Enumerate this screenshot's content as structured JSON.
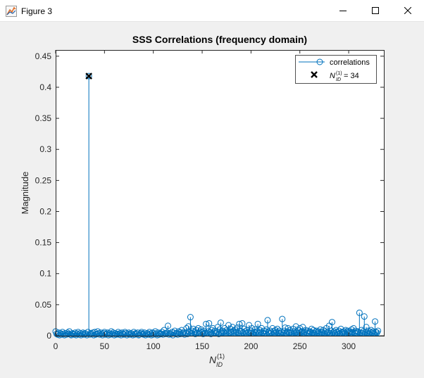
{
  "window": {
    "title": "Figure 3",
    "icon": "matlab-figure-icon",
    "controls": [
      "minimize",
      "maximize",
      "close"
    ]
  },
  "colors": {
    "stem": "#0072bd",
    "marker": "#000000",
    "figure_bg": "#f0f0f0",
    "axes_bg": "#ffffff"
  },
  "chart_data": {
    "type": "scatter",
    "subtype": "stem",
    "title": "SSS Correlations (frequency domain)",
    "xlabel": "N_ID^(1)",
    "ylabel": "Magnitude",
    "xlim": [
      0,
      336
    ],
    "ylim": [
      0,
      0.46
    ],
    "xticks": [
      0,
      50,
      100,
      150,
      200,
      250,
      300
    ],
    "yticks": [
      0,
      0.05,
      0.1,
      0.15,
      0.2,
      0.25,
      0.3,
      0.35,
      0.4,
      0.45
    ],
    "xtick_labels": [
      "0",
      "50",
      "100",
      "150",
      "200",
      "250",
      "300"
    ],
    "ytick_labels": [
      "0",
      "0.05",
      "0.1",
      "0.15",
      "0.2",
      "0.25",
      "0.3",
      "0.35",
      "0.4",
      "0.45"
    ],
    "grid": false,
    "legend_position": "top-right",
    "series": [
      {
        "name": "correlations",
        "x_start": 0,
        "x_step": 1,
        "values": [
          0.007,
          0.003,
          0.002,
          0.005,
          0.001,
          0.004,
          0.002,
          0.006,
          0.003,
          0.001,
          0.004,
          0.002,
          0.005,
          0.003,
          0.007,
          0.002,
          0.001,
          0.004,
          0.003,
          0.002,
          0.005,
          0.001,
          0.003,
          0.006,
          0.002,
          0.004,
          0.001,
          0.003,
          0.005,
          0.002,
          0.004,
          0.003,
          0.001,
          0.006,
          0.418,
          0.002,
          0.004,
          0.003,
          0.005,
          0.001,
          0.006,
          0.002,
          0.003,
          0.007,
          0.004,
          0.002,
          0.005,
          0.003,
          0.001,
          0.004,
          0.006,
          0.002,
          0.003,
          0.005,
          0.001,
          0.004,
          0.002,
          0.007,
          0.003,
          0.005,
          0.001,
          0.004,
          0.002,
          0.003,
          0.006,
          0.002,
          0.004,
          0.001,
          0.005,
          0.003,
          0.002,
          0.006,
          0.004,
          0.001,
          0.003,
          0.005,
          0.002,
          0.004,
          0.003,
          0.001,
          0.006,
          0.002,
          0.004,
          0.003,
          0.005,
          0.001,
          0.002,
          0.004,
          0.006,
          0.003,
          0.002,
          0.005,
          0.001,
          0.003,
          0.004,
          0.002,
          0.006,
          0.003,
          0.001,
          0.005,
          0.002,
          0.004,
          0.007,
          0.003,
          0.001,
          0.005,
          0.002,
          0.004,
          0.003,
          0.006,
          0.002,
          0.009,
          0.004,
          0.003,
          0.005,
          0.016,
          0.002,
          0.004,
          0.003,
          0.006,
          0.001,
          0.005,
          0.008,
          0.003,
          0.004,
          0.002,
          0.007,
          0.005,
          0.003,
          0.009,
          0.004,
          0.006,
          0.002,
          0.005,
          0.012,
          0.003,
          0.015,
          0.007,
          0.03,
          0.004,
          0.008,
          0.011,
          0.006,
          0.003,
          0.009,
          0.005,
          0.012,
          0.004,
          0.007,
          0.01,
          0.006,
          0.003,
          0.008,
          0.005,
          0.019,
          0.004,
          0.007,
          0.02,
          0.006,
          0.003,
          0.009,
          0.012,
          0.005,
          0.008,
          0.004,
          0.006,
          0.014,
          0.003,
          0.01,
          0.021,
          0.005,
          0.008,
          0.006,
          0.012,
          0.004,
          0.009,
          0.007,
          0.017,
          0.005,
          0.011,
          0.006,
          0.014,
          0.008,
          0.004,
          0.01,
          0.006,
          0.013,
          0.005,
          0.019,
          0.008,
          0.007,
          0.02,
          0.005,
          0.011,
          0.007,
          0.004,
          0.009,
          0.006,
          0.017,
          0.005,
          0.008,
          0.012,
          0.004,
          0.006,
          0.01,
          0.005,
          0.007,
          0.019,
          0.004,
          0.009,
          0.006,
          0.012,
          0.005,
          0.008,
          0.004,
          0.007,
          0.01,
          0.025,
          0.006,
          0.004,
          0.008,
          0.005,
          0.012,
          0.007,
          0.004,
          0.009,
          0.006,
          0.011,
          0.005,
          0.008,
          0.004,
          0.006,
          0.027,
          0.005,
          0.008,
          0.013,
          0.004,
          0.007,
          0.012,
          0.005,
          0.009,
          0.006,
          0.004,
          0.011,
          0.007,
          0.005,
          0.015,
          0.006,
          0.004,
          0.009,
          0.012,
          0.005,
          0.007,
          0.014,
          0.004,
          0.006,
          0.009,
          0.005,
          0.008,
          0.004,
          0.007,
          0.006,
          0.011,
          0.005,
          0.009,
          0.004,
          0.006,
          0.008,
          0.005,
          0.007,
          0.004,
          0.01,
          0.006,
          0.005,
          0.009,
          0.004,
          0.007,
          0.012,
          0.005,
          0.006,
          0.016,
          0.004,
          0.008,
          0.022,
          0.005,
          0.007,
          0.004,
          0.009,
          0.006,
          0.005,
          0.008,
          0.004,
          0.011,
          0.006,
          0.005,
          0.007,
          0.004,
          0.009,
          0.006,
          0.008,
          0.005,
          0.007,
          0.004,
          0.01,
          0.006,
          0.012,
          0.005,
          0.008,
          0.004,
          0.007,
          0.006,
          0.037,
          0.005,
          0.009,
          0.004,
          0.007,
          0.031,
          0.006,
          0.014,
          0.005,
          0.008,
          0.004,
          0.006,
          0.009,
          0.005,
          0.007,
          0.004,
          0.023,
          0.006,
          0.005,
          0.008
        ]
      },
      {
        "name": "N_ID^(1) = 34",
        "x": [
          34
        ],
        "y": [
          0.418
        ]
      }
    ]
  }
}
